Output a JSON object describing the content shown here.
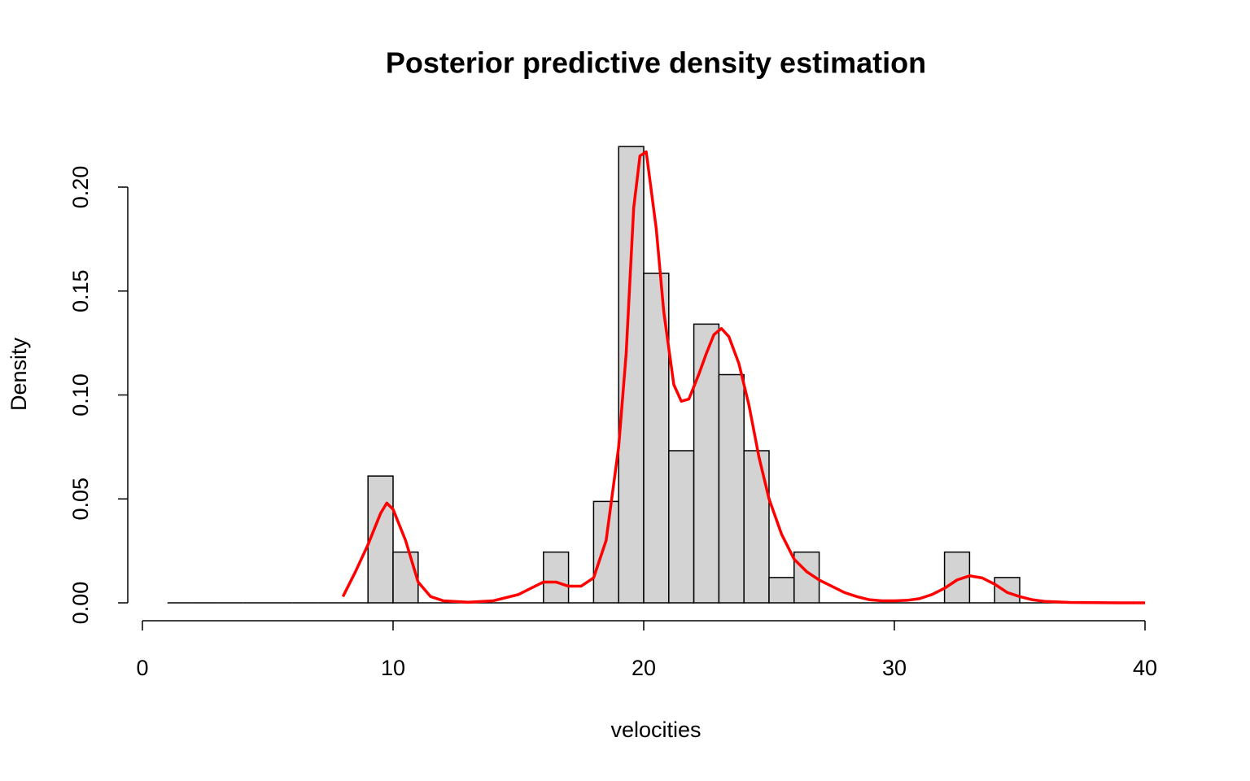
{
  "chart_data": {
    "type": "histogram",
    "title": "Posterior predictive density estimation",
    "xlabel": "velocities",
    "ylabel": "Density",
    "bins": [
      1,
      2,
      3,
      4,
      5,
      6,
      7,
      8,
      9,
      10,
      11,
      12,
      13,
      14,
      15,
      16,
      17,
      18,
      19,
      20,
      21,
      22,
      23,
      24,
      25,
      26,
      27,
      28,
      29,
      30,
      31,
      32,
      33,
      34,
      35,
      36,
      37,
      38,
      39,
      40
    ],
    "values": [
      0,
      0,
      0,
      0,
      0,
      0,
      0,
      0,
      0.061,
      0.0244,
      0,
      0,
      0,
      0,
      0,
      0.0244,
      0,
      0.0488,
      0.2195,
      0.1585,
      0.0732,
      0.1341,
      0.1098,
      0.0732,
      0.0122,
      0.0244,
      0,
      0,
      0,
      0,
      0,
      0.0244,
      0,
      0.0122,
      0,
      0,
      0,
      0,
      0
    ],
    "color": "#d3d3d3",
    "density": {
      "color": "#ff0000",
      "x": [
        8,
        8.5,
        9,
        9.5,
        9.75,
        10,
        10.5,
        11,
        11.5,
        12,
        13,
        14,
        15,
        15.5,
        16,
        16.5,
        17,
        17.5,
        18,
        18.5,
        19,
        19.3,
        19.6,
        19.85,
        20.1,
        20.5,
        20.8,
        21.2,
        21.5,
        21.8,
        22.2,
        22.5,
        22.8,
        23.1,
        23.4,
        23.8,
        24.2,
        24.6,
        25,
        25.5,
        26,
        26.5,
        27,
        27.5,
        28,
        28.5,
        29,
        29.5,
        30,
        30.5,
        31,
        31.5,
        32,
        32.5,
        33,
        33.5,
        34,
        34.5,
        35,
        35.5,
        36,
        37,
        38,
        39,
        40
      ],
      "y": [
        0.003,
        0.015,
        0.028,
        0.043,
        0.048,
        0.045,
        0.03,
        0.01,
        0.003,
        0.001,
        0.0003,
        0.001,
        0.004,
        0.007,
        0.01,
        0.01,
        0.008,
        0.008,
        0.012,
        0.03,
        0.075,
        0.12,
        0.19,
        0.215,
        0.217,
        0.18,
        0.14,
        0.105,
        0.097,
        0.098,
        0.11,
        0.12,
        0.129,
        0.132,
        0.128,
        0.115,
        0.095,
        0.07,
        0.05,
        0.033,
        0.021,
        0.015,
        0.011,
        0.008,
        0.005,
        0.003,
        0.0015,
        0.001,
        0.001,
        0.0012,
        0.002,
        0.004,
        0.007,
        0.011,
        0.013,
        0.012,
        0.009,
        0.005,
        0.003,
        0.0015,
        0.0007,
        0.0002,
        0.0001,
        0,
        0
      ]
    },
    "xlim": [
      0,
      40
    ],
    "xticks": [
      0,
      10,
      20,
      30,
      40
    ],
    "ylim": [
      0,
      0.2
    ],
    "yticks": [
      {
        "value": 0,
        "label": "0.00"
      },
      {
        "value": 0.05,
        "label": "0.05"
      },
      {
        "value": 0.1,
        "label": "0.10"
      },
      {
        "value": 0.15,
        "label": "0.15"
      },
      {
        "value": 0.2,
        "label": "0.20"
      }
    ]
  }
}
